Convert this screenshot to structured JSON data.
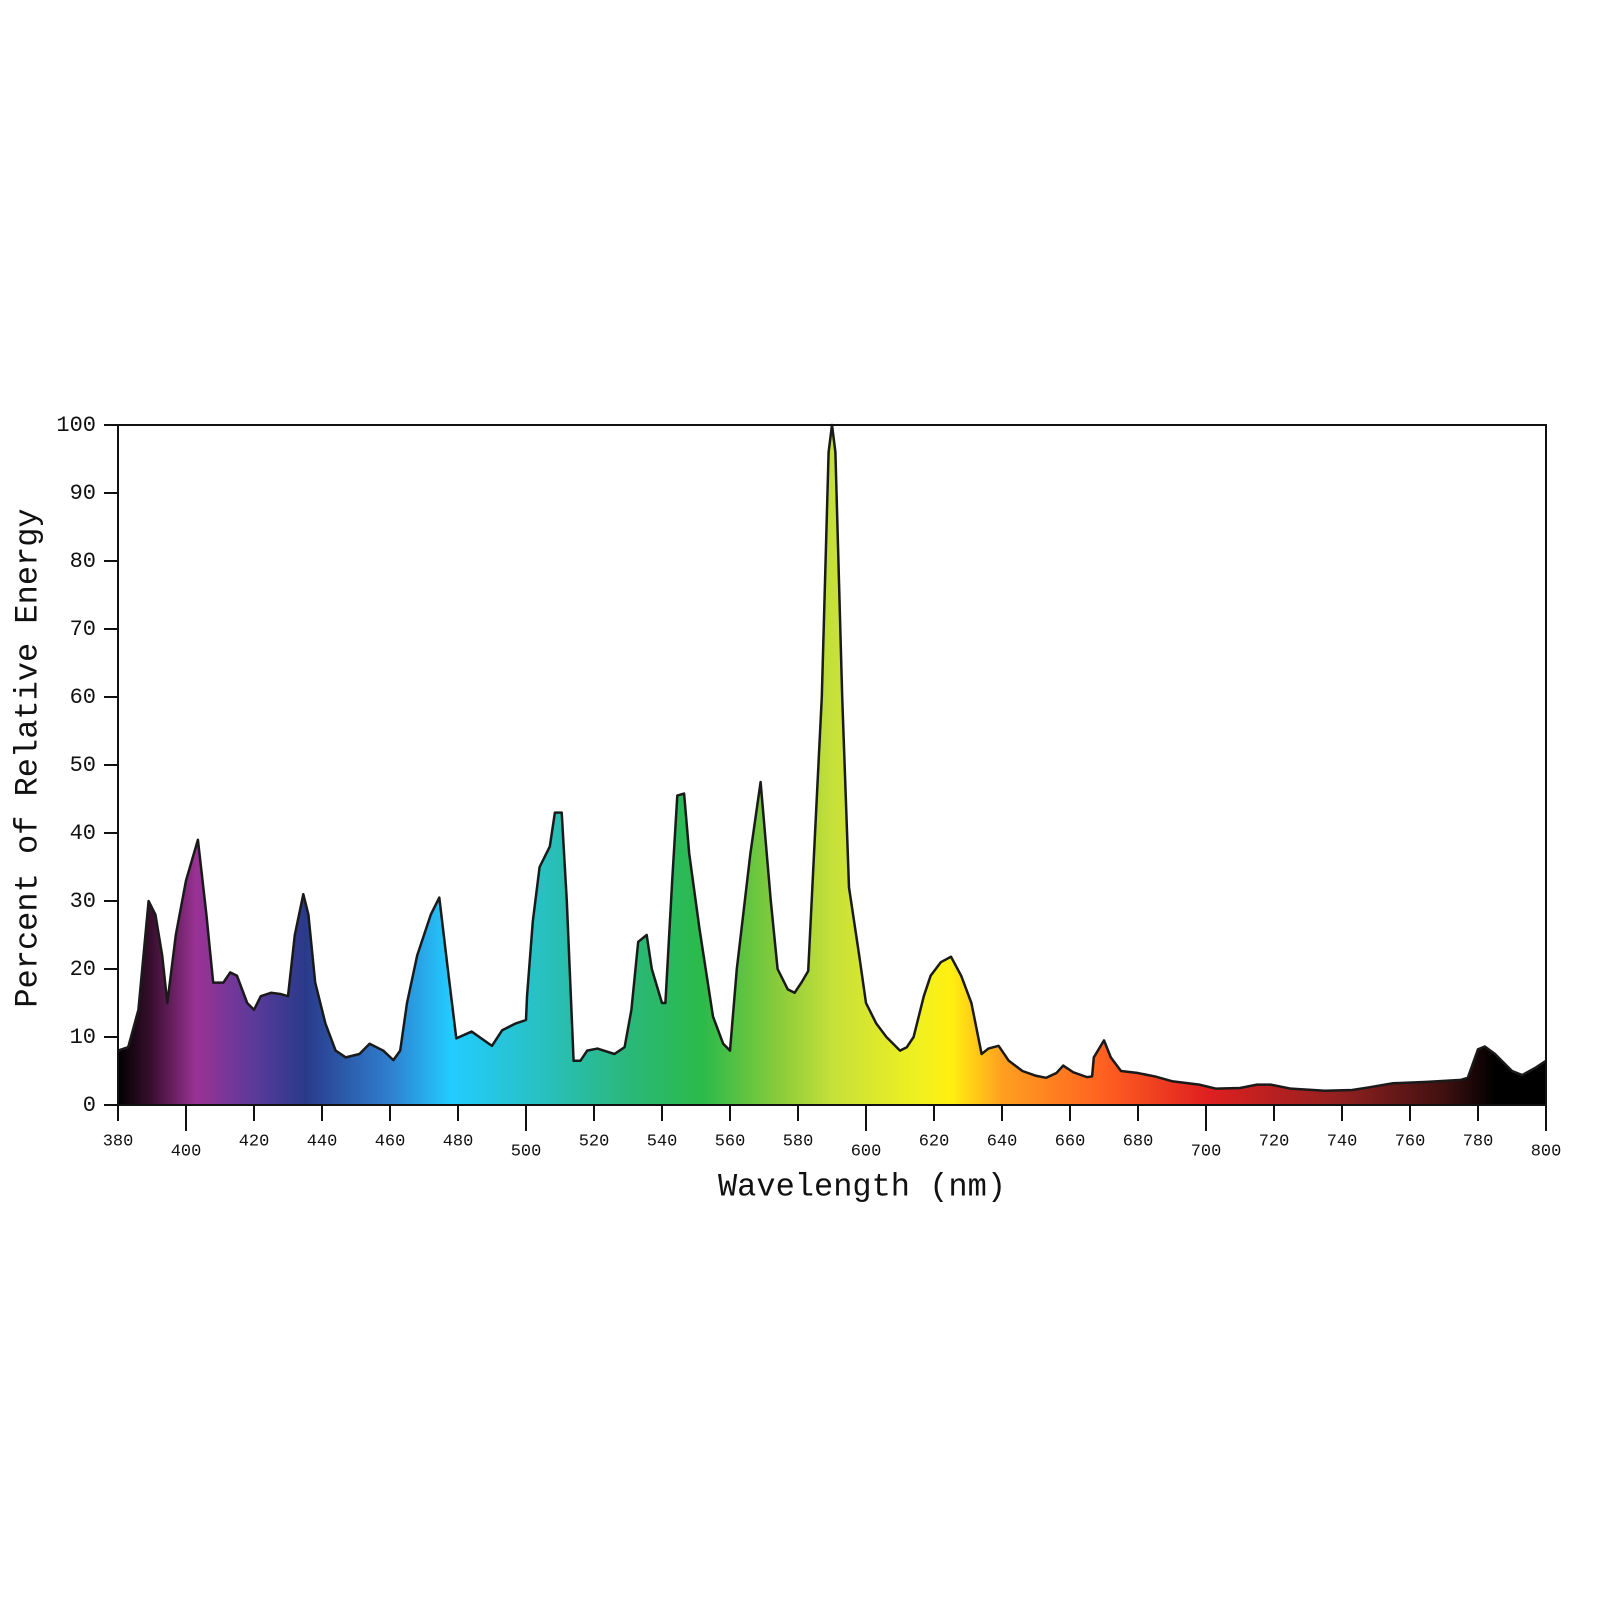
{
  "chart_data": {
    "type": "area",
    "xlabel": "Wavelength (nm)",
    "ylabel": "Percent of Relative Energy",
    "x": [
      380,
      383,
      386,
      389,
      391,
      393,
      394.5,
      397,
      400,
      403.5,
      406,
      408,
      411,
      413,
      415,
      418,
      420,
      422,
      425,
      428,
      430,
      432,
      434.5,
      436,
      438,
      441,
      444,
      447,
      451,
      454,
      458,
      461,
      463,
      465,
      468,
      472,
      474.5,
      477,
      479.5,
      484,
      490,
      493,
      497,
      500,
      500.3,
      502,
      504,
      507,
      508.5,
      510.5,
      512,
      514,
      516,
      518,
      521,
      526,
      529,
      531,
      533,
      535.5,
      537,
      540,
      541,
      543,
      544.5,
      546.5,
      548,
      551,
      555,
      558,
      560,
      562,
      566,
      569,
      572,
      574,
      577,
      579,
      581,
      583,
      587,
      589,
      590,
      591,
      593,
      595,
      598,
      600,
      603,
      606,
      610,
      612,
      614,
      617,
      619,
      622,
      625,
      628,
      631,
      634,
      636,
      639,
      642,
      646,
      650,
      653,
      656,
      658,
      661,
      665,
      666.5,
      667,
      670,
      672,
      675,
      680,
      685,
      690,
      698,
      703,
      710,
      715,
      719,
      725,
      735,
      743,
      748,
      755,
      765,
      775,
      777,
      780,
      782,
      785,
      790,
      793,
      797,
      800
    ],
    "values": [
      8,
      8.5,
      14,
      30,
      28,
      22,
      15,
      25,
      33,
      39,
      28,
      18,
      18,
      19.5,
      19,
      15,
      14,
      16,
      16.5,
      16.3,
      16,
      25,
      31,
      28,
      18,
      12,
      8,
      7,
      7.5,
      9,
      8,
      6.6,
      8,
      15,
      22,
      28,
      30.5,
      20,
      9.8,
      10.8,
      8.7,
      11,
      12,
      12.5,
      16,
      27,
      35,
      38,
      43,
      43,
      30,
      6.5,
      6.5,
      8,
      8.3,
      7.5,
      8.5,
      14,
      24,
      25,
      20,
      15,
      15,
      33,
      45.5,
      45.8,
      37,
      26,
      13,
      9,
      8,
      20,
      37,
      47.5,
      30,
      20,
      17,
      16.5,
      18,
      19.7,
      60,
      96,
      100,
      96,
      60,
      32,
      22,
      15,
      12,
      10,
      8,
      8.5,
      10,
      16,
      19,
      21,
      21.8,
      19,
      15,
      7.5,
      8.3,
      8.7,
      6.5,
      5,
      4.3,
      4,
      4.7,
      5.8,
      4.8,
      4.1,
      4.2,
      7,
      9.5,
      7,
      5,
      4.7,
      4.2,
      3.5,
      3,
      2.4,
      2.5,
      3,
      3,
      2.4,
      2.1,
      2.2,
      2.6,
      3.2,
      3.4,
      3.7,
      4,
      8.2,
      8.6,
      7.5,
      5,
      4.4,
      5.5,
      6.5
    ],
    "xlim": [
      380,
      800
    ],
    "ylim": [
      0,
      100
    ],
    "xticks": [
      380,
      400,
      420,
      440,
      460,
      480,
      500,
      520,
      540,
      560,
      580,
      600,
      620,
      640,
      660,
      680,
      700,
      720,
      740,
      760,
      780,
      800
    ],
    "yticks": [
      0,
      10,
      20,
      30,
      40,
      50,
      60,
      70,
      80,
      90,
      100
    ],
    "line_color": "#1a1a1a",
    "gradient": [
      {
        "x": 380,
        "color": "#000000"
      },
      {
        "x": 390,
        "color": "#3a0f30"
      },
      {
        "x": 403,
        "color": "#9b3295"
      },
      {
        "x": 420,
        "color": "#5b3a9a"
      },
      {
        "x": 435,
        "color": "#2a3a8a"
      },
      {
        "x": 460,
        "color": "#2f7fcf"
      },
      {
        "x": 478,
        "color": "#22ccff"
      },
      {
        "x": 505,
        "color": "#28c0c0"
      },
      {
        "x": 530,
        "color": "#2ab87a"
      },
      {
        "x": 552,
        "color": "#2bba4a"
      },
      {
        "x": 575,
        "color": "#8ccc3a"
      },
      {
        "x": 590,
        "color": "#c6e03a"
      },
      {
        "x": 615,
        "color": "#f0f020"
      },
      {
        "x": 625,
        "color": "#fff010"
      },
      {
        "x": 640,
        "color": "#ffa020"
      },
      {
        "x": 670,
        "color": "#ff6020"
      },
      {
        "x": 700,
        "color": "#e02020"
      },
      {
        "x": 740,
        "color": "#902020"
      },
      {
        "x": 770,
        "color": "#401010"
      },
      {
        "x": 785,
        "color": "#000000"
      },
      {
        "x": 800,
        "color": "#000000"
      }
    ]
  }
}
